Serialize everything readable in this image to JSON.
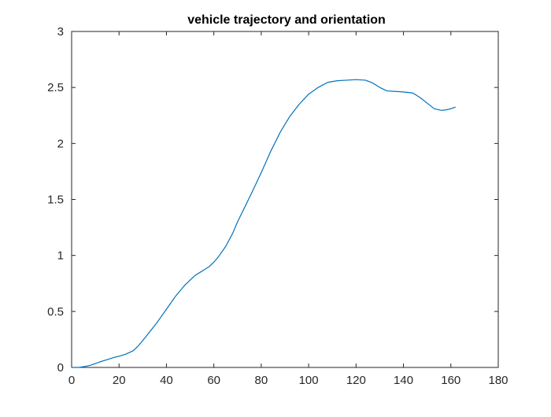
{
  "chart_data": {
    "type": "line",
    "title": "vehicle trajectory and orientation",
    "xlabel": "",
    "ylabel": "",
    "xlim": [
      0,
      180
    ],
    "ylim": [
      0,
      3
    ],
    "xticks": [
      0,
      20,
      40,
      60,
      80,
      100,
      120,
      140,
      160,
      180
    ],
    "yticks": [
      0,
      0.5,
      1,
      1.5,
      2,
      2.5,
      3
    ],
    "xtick_labels": [
      "0",
      "20",
      "40",
      "60",
      "80",
      "100",
      "120",
      "140",
      "160",
      "180"
    ],
    "ytick_labels": [
      "0",
      "0.5",
      "1",
      "1.5",
      "2",
      "2.5",
      "3"
    ],
    "grid": false,
    "box": true,
    "series": [
      {
        "name": "",
        "color": "#0072BD",
        "x": [
          0,
          3,
          6,
          8,
          10,
          12,
          15,
          18,
          20,
          23,
          26,
          28,
          30,
          33,
          36,
          40,
          44,
          48,
          52,
          55,
          58,
          60,
          62,
          65,
          68,
          70,
          73,
          76,
          80,
          84,
          88,
          92,
          96,
          100,
          104,
          108,
          112,
          116,
          120,
          124,
          127,
          130,
          133,
          136,
          140,
          144,
          147,
          150,
          153,
          156,
          158,
          160,
          162
        ],
        "y": [
          0,
          0,
          0.01,
          0.02,
          0.035,
          0.05,
          0.07,
          0.09,
          0.1,
          0.12,
          0.15,
          0.19,
          0.24,
          0.32,
          0.4,
          0.52,
          0.64,
          0.74,
          0.82,
          0.86,
          0.9,
          0.94,
          0.99,
          1.08,
          1.2,
          1.3,
          1.43,
          1.56,
          1.74,
          1.93,
          2.1,
          2.24,
          2.35,
          2.44,
          2.5,
          2.545,
          2.56,
          2.565,
          2.57,
          2.565,
          2.54,
          2.5,
          2.47,
          2.465,
          2.46,
          2.45,
          2.41,
          2.36,
          2.31,
          2.295,
          2.3,
          2.31,
          2.325
        ]
      }
    ]
  }
}
